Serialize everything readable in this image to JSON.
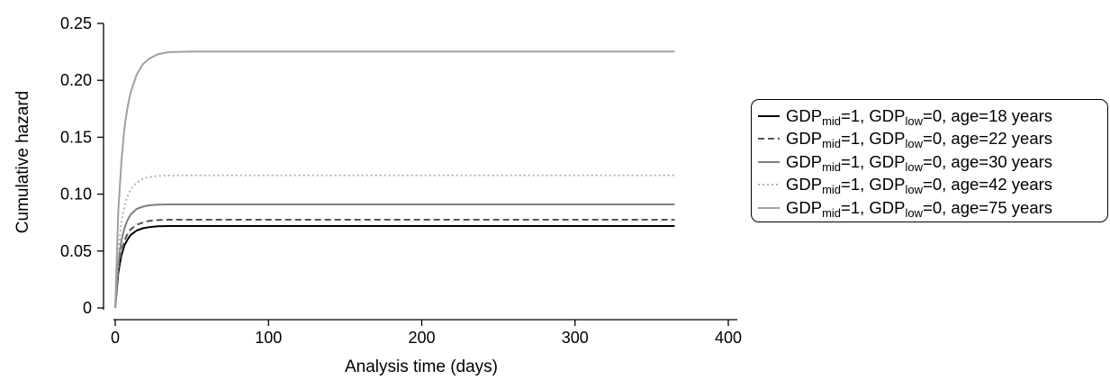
{
  "chart_data": {
    "type": "line",
    "title": "",
    "xlabel": "Analysis time (days)",
    "ylabel": "Cumulative hazard",
    "xlim": [
      0,
      400
    ],
    "ylim": [
      0,
      0.25
    ],
    "xticks": [
      "0",
      "100",
      "200",
      "300",
      "400"
    ],
    "yticks": [
      "0",
      "0.05",
      "0.10",
      "0.15",
      "0.20",
      "0.25"
    ],
    "grid": false,
    "legend_position": "right",
    "series": [
      {
        "name": "GDPmid=1, GDPlow=0, age=18 years",
        "label_parts": {
          "a": "GDP",
          "a_sub": "mid",
          "b": "=1, GDP",
          "b_sub": "low",
          "c": "=0, age=18 years"
        },
        "color": "#000000",
        "dash": "solid",
        "x": [
          0,
          2,
          4,
          6,
          8,
          10,
          14,
          18,
          22,
          28,
          35,
          50,
          100,
          200,
          300,
          365
        ],
        "y": [
          0,
          0.031,
          0.046,
          0.055,
          0.06,
          0.064,
          0.068,
          0.07,
          0.071,
          0.0718,
          0.072,
          0.072,
          0.072,
          0.072,
          0.072,
          0.072
        ]
      },
      {
        "name": "GDPmid=1, GDPlow=0, age=22 years",
        "label_parts": {
          "a": "GDP",
          "a_sub": "mid",
          "b": "=1, GDP",
          "b_sub": "low",
          "c": "=0, age=22 years"
        },
        "color": "#555555",
        "dash": "dashed",
        "x": [
          0,
          2,
          4,
          6,
          8,
          10,
          14,
          18,
          22,
          28,
          35,
          50,
          100,
          200,
          300,
          365
        ],
        "y": [
          0,
          0.034,
          0.05,
          0.059,
          0.065,
          0.069,
          0.073,
          0.075,
          0.0765,
          0.0772,
          0.0775,
          0.0775,
          0.0775,
          0.0775,
          0.0775,
          0.0775
        ]
      },
      {
        "name": "GDPmid=1, GDPlow=0, age=30 years",
        "label_parts": {
          "a": "GDP",
          "a_sub": "mid",
          "b": "=1, GDP",
          "b_sub": "low",
          "c": "=0, age=30 years"
        },
        "color": "#7f7f7f",
        "dash": "solid",
        "x": [
          0,
          2,
          4,
          6,
          8,
          10,
          14,
          18,
          22,
          28,
          35,
          50,
          100,
          200,
          300,
          365
        ],
        "y": [
          0,
          0.04,
          0.059,
          0.07,
          0.077,
          0.082,
          0.087,
          0.089,
          0.0902,
          0.0908,
          0.091,
          0.091,
          0.091,
          0.091,
          0.091,
          0.091
        ]
      },
      {
        "name": "GDPmid=1, GDPlow=0, age=42 years",
        "label_parts": {
          "a": "GDP",
          "a_sub": "mid",
          "b": "=1, GDP",
          "b_sub": "low",
          "c": "=0, age=42 years"
        },
        "color": "#b3b3b3",
        "dash": "dotted",
        "x": [
          0,
          2,
          4,
          6,
          8,
          10,
          14,
          18,
          22,
          28,
          35,
          50,
          100,
          200,
          300,
          365
        ],
        "y": [
          0,
          0.05,
          0.075,
          0.089,
          0.098,
          0.104,
          0.11,
          0.1135,
          0.115,
          0.116,
          0.1163,
          0.1165,
          0.1165,
          0.1165,
          0.1165,
          0.1165
        ]
      },
      {
        "name": "GDPmid=1, GDPlow=0, age=75 years",
        "label_parts": {
          "a": "GDP",
          "a_sub": "mid",
          "b": "=1, GDP",
          "b_sub": "low",
          "c": "=0, age=75 years"
        },
        "color": "#a0a0a0",
        "dash": "solid",
        "x": [
          0,
          2,
          4,
          6,
          8,
          10,
          14,
          18,
          22,
          28,
          35,
          50,
          100,
          200,
          300,
          365
        ],
        "y": [
          0,
          0.085,
          0.128,
          0.158,
          0.176,
          0.189,
          0.205,
          0.214,
          0.219,
          0.223,
          0.2248,
          0.2252,
          0.2252,
          0.2252,
          0.2252,
          0.2252
        ]
      }
    ]
  }
}
